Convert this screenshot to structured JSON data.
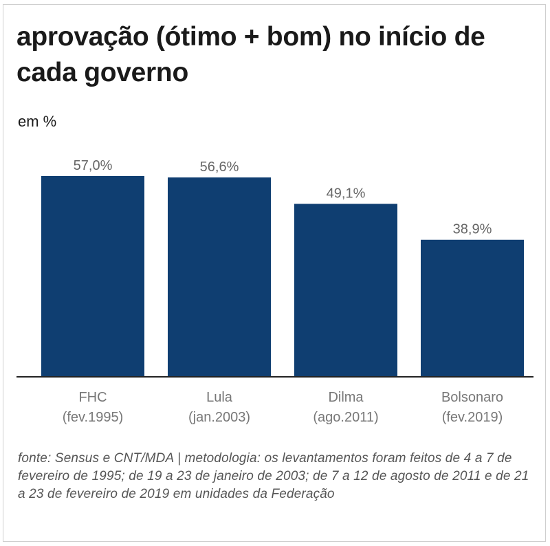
{
  "title": "aprovação (ótimo + bom) no início de cada governo",
  "subtitle": "em %",
  "source": "fonte: Sensus e CNT/MDA | metodologia: os levantamentos foram feitos de 4 a 7 de fevereiro de 1995; de 19 a 23 de janeiro de 2003; de 7 a 12 de agosto de 2011 e de 21 a 23 de fevereiro de 2019 em unidades da Federação",
  "colors": {
    "bar": "#0f3e71",
    "value_label": "#666666",
    "category_label": "#777777"
  },
  "chart_data": {
    "type": "bar",
    "title": "aprovação (ótimo + bom) no início de cada governo",
    "ylabel": "em %",
    "xlabel": "",
    "categories": [
      [
        "FHC",
        "(fev.1995)"
      ],
      [
        "Lula",
        "(jan.2003)"
      ],
      [
        "Dilma",
        "(ago.2011)"
      ],
      [
        "Bolsonaro",
        "(fev.2019)"
      ]
    ],
    "values": [
      57.0,
      56.6,
      49.1,
      38.9
    ],
    "value_labels": [
      "57,0%",
      "56,6%",
      "49,1%",
      "38,9%"
    ],
    "ylim": [
      0,
      57.0
    ],
    "grid": false,
    "legend": "none"
  }
}
